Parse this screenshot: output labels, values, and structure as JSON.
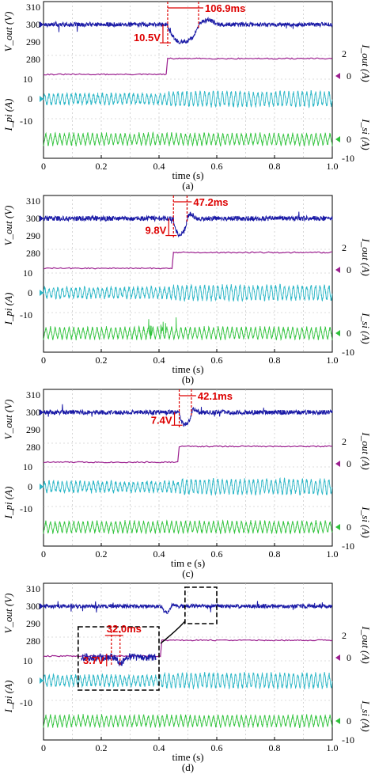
{
  "chart_data": [
    {
      "id": "a",
      "type": "line",
      "label": "(a)",
      "xlabel": "time (s)",
      "x_ticks": [
        "0",
        "0.2",
        "0.4",
        "0.6",
        "0.8",
        "1.0"
      ],
      "xlim": [
        0,
        1.0
      ],
      "step_time": 0.43,
      "vout_ticks": [
        "310",
        "300",
        "290",
        "280"
      ],
      "iout_ticks": [
        "2",
        "0"
      ],
      "ipi_ticks": [
        "10",
        "0",
        "-10"
      ],
      "isi_ticks": [
        "0",
        "-10"
      ],
      "labels": {
        "vout": "V_out (V)",
        "iout": "I_out (A)",
        "ipi": "I_pi (A)",
        "isi": "I_si (A)"
      },
      "series": [
        {
          "name": "V_out",
          "color": "#1a1aa6",
          "baseline": 300,
          "dip": 10.5,
          "recovery_s": 0.107,
          "noise": 1.2
        },
        {
          "name": "I_out",
          "color": "#9b1f8f",
          "before": 0,
          "after": 2
        },
        {
          "name": "I_pi",
          "color": "#2ab6c6"
        },
        {
          "name": "I_si",
          "color": "#2ec23a"
        }
      ],
      "annotations": {
        "dv": "10.5V",
        "dt": "106.9ms"
      }
    },
    {
      "id": "b",
      "type": "line",
      "label": "(b)",
      "xlabel": "time (s)",
      "x_ticks": [
        "0",
        "0.2",
        "0.4",
        "0.6",
        "0.8",
        "1.0"
      ],
      "xlim": [
        0,
        1.0
      ],
      "step_time": 0.45,
      "vout_ticks": [
        "310",
        "300",
        "290",
        "280"
      ],
      "iout_ticks": [
        "2",
        "0"
      ],
      "ipi_ticks": [
        "10",
        "0",
        "-10"
      ],
      "isi_ticks": [
        "0",
        "-10"
      ],
      "labels": {
        "vout": "V_out (V)",
        "iout": "I_out (A)",
        "ipi": "I_pi (A)",
        "isi": "I_si (A)"
      },
      "series": [
        {
          "name": "V_out",
          "color": "#1a1aa6",
          "baseline": 300,
          "dip": 9.8,
          "recovery_s": 0.047,
          "noise": 1.4
        },
        {
          "name": "I_out",
          "color": "#9b1f8f",
          "before": 0,
          "after": 2
        },
        {
          "name": "I_pi",
          "color": "#2ab6c6"
        },
        {
          "name": "I_si",
          "color": "#2ec23a"
        }
      ],
      "annotations": {
        "dv": "9.8V",
        "dt": "47.2ms"
      }
    },
    {
      "id": "c",
      "type": "line",
      "label": "(c)",
      "xlabel": "tim e (s)",
      "x_ticks": [
        "0",
        "0.2",
        "0.4",
        "0.6",
        "0.8",
        "1.0"
      ],
      "xlim": [
        0,
        1.0
      ],
      "step_time": 0.47,
      "vout_ticks": [
        "310",
        "300",
        "290",
        "280"
      ],
      "iout_ticks": [
        "2",
        "0"
      ],
      "ipi_ticks": [
        "10",
        "0",
        "-10"
      ],
      "isi_ticks": [
        "0",
        "-10"
      ],
      "labels": {
        "vout": "V_out (V)",
        "iout": "I_out (A)",
        "ipi": "I_pi (A)",
        "isi": "I_si (A)"
      },
      "series": [
        {
          "name": "V_out",
          "color": "#1a1aa6",
          "baseline": 300,
          "dip": 7.4,
          "recovery_s": 0.042,
          "noise": 1.3
        },
        {
          "name": "I_out",
          "color": "#9b1f8f",
          "before": 0,
          "after": 2
        },
        {
          "name": "I_pi",
          "color": "#2ab6c6"
        },
        {
          "name": "I_si",
          "color": "#2ec23a"
        }
      ],
      "annotations": {
        "dv": "7.4V",
        "dt": "42.1ms"
      }
    },
    {
      "id": "d",
      "type": "line",
      "label": "(d)",
      "xlabel": "time (s)",
      "x_ticks": [
        "0",
        "0.2",
        "0.4",
        "0.6",
        "0.8",
        "1.0"
      ],
      "xlim": [
        0,
        1.0
      ],
      "step_time": 0.41,
      "vout_ticks": [
        "310",
        "300",
        "290",
        "280"
      ],
      "iout_ticks": [
        "2",
        "0"
      ],
      "ipi_ticks": [
        "10",
        "0",
        "-10"
      ],
      "isi_ticks": [
        "0",
        "-10"
      ],
      "labels": {
        "vout": "V_out (V)",
        "iout": "I_out (A)",
        "ipi": "I_pi (A)",
        "isi": "I_si (A)"
      },
      "series": [
        {
          "name": "V_out",
          "color": "#1a1aa6",
          "baseline": 300,
          "dip": 3.7,
          "recovery_s": 0.032,
          "noise": 1.1
        },
        {
          "name": "I_out",
          "color": "#9b1f8f",
          "before": 0,
          "after": 2
        },
        {
          "name": "I_pi",
          "color": "#2ab6c6"
        },
        {
          "name": "I_si",
          "color": "#2ec23a"
        }
      ],
      "annotations": {
        "dv": "3.7V",
        "dt": "32.0ms"
      },
      "inset": true
    }
  ]
}
